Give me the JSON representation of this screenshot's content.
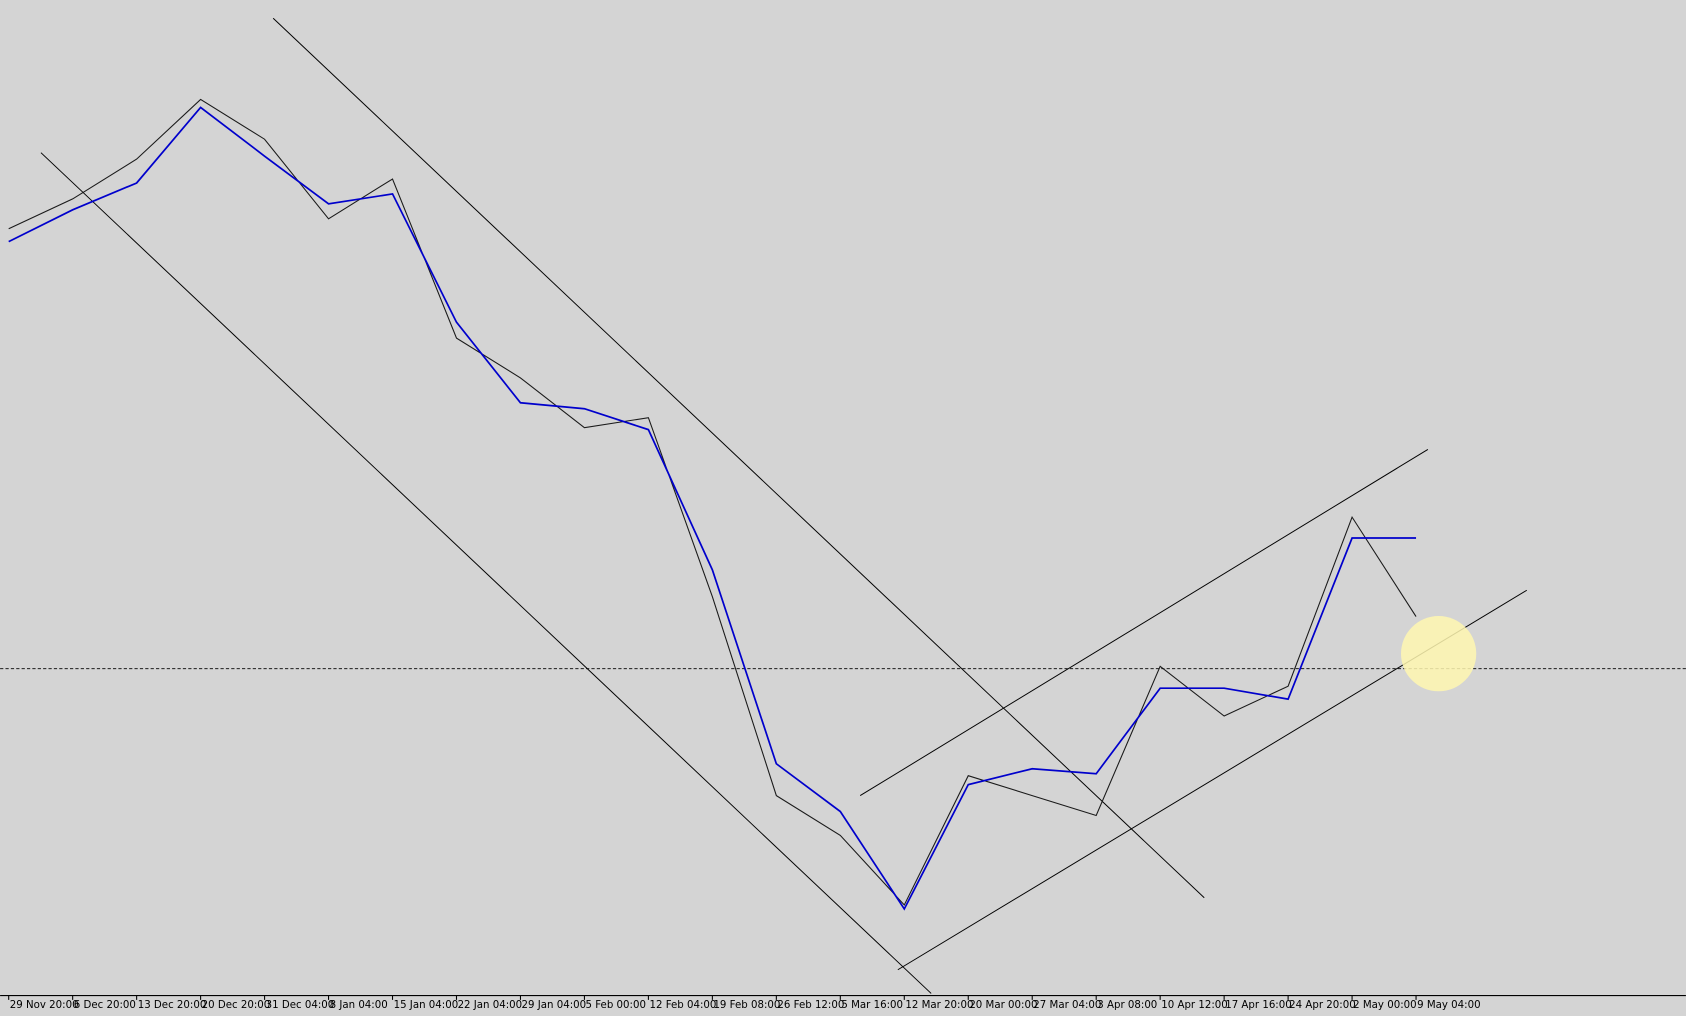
{
  "chart_data": {
    "type": "line",
    "categories": [
      "29 Nov 20:00",
      "6 Dec 20:00",
      "13 Dec 20:00",
      "20 Dec 20:00",
      "31 Dec 04:00",
      "8 Jan 04:00",
      "15 Jan 04:00",
      "22 Jan 04:00",
      "29 Jan 04:00",
      "5 Feb 00:00",
      "12 Feb 04:00",
      "19 Feb 08:00",
      "26 Feb 12:00",
      "5 Mar 16:00",
      "12 Mar 20:00",
      "20 Mar 00:00",
      "27 Mar 04:00",
      "3 Apr 08:00",
      "10 Apr 12:00",
      "17 Apr 16:00",
      "24 Apr 20:00",
      "2 May 00:00",
      "9 May 04:00"
    ],
    "series": [
      {
        "color": "#1a1a1a",
        "values": [
          77,
          80,
          84,
          90,
          86,
          78,
          82,
          66,
          62,
          57,
          58,
          40,
          20,
          16,
          9,
          22,
          20,
          18,
          33,
          28,
          31,
          48,
          38
        ]
      },
      {
        "color": "#0000cc",
        "values": [
          75.7,
          78.9,
          81.6,
          89.2,
          84.3,
          79.5,
          80.5,
          67.6,
          59.5,
          58.9,
          56.8,
          42.7,
          23.2,
          18.4,
          8.6,
          21.1,
          22.7,
          22.2,
          30.8,
          30.8,
          29.7,
          45.9,
          45.9
        ]
      }
    ],
    "ylim": [
      0,
      100
    ]
  }
}
